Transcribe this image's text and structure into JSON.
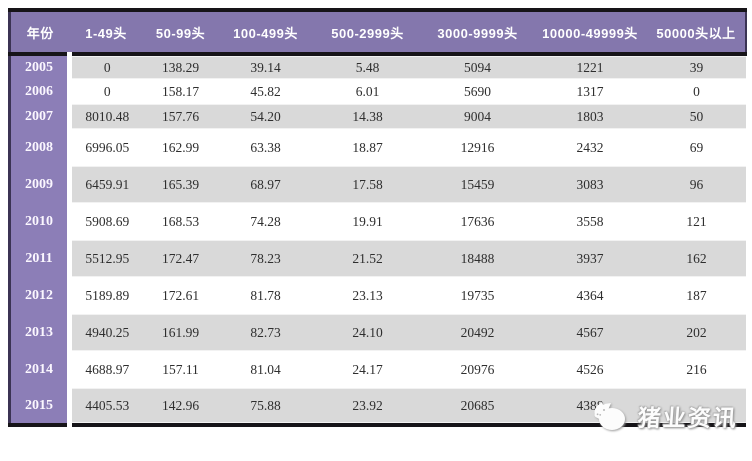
{
  "table": {
    "columns": [
      "年份",
      "1-49头",
      "50-99头",
      "100-499头",
      "500-2999头",
      "3000-9999头",
      "10000-49999头",
      "50000头以上"
    ],
    "rows": [
      {
        "year": "2005",
        "values": [
          "0",
          "138.29",
          "39.14",
          "5.48",
          "5094",
          "1221",
          "39"
        ]
      },
      {
        "year": "2006",
        "values": [
          "0",
          "158.17",
          "45.82",
          "6.01",
          "5690",
          "1317",
          "0"
        ]
      },
      {
        "year": "2007",
        "values": [
          "8010.48",
          "157.76",
          "54.20",
          "14.38",
          "9004",
          "1803",
          "50"
        ]
      },
      {
        "year": "2008",
        "values": [
          "6996.05",
          "162.99",
          "63.38",
          "18.87",
          "12916",
          "2432",
          "69"
        ]
      },
      {
        "year": "2009",
        "values": [
          "6459.91",
          "165.39",
          "68.97",
          "17.58",
          "15459",
          "3083",
          "96"
        ]
      },
      {
        "year": "2010",
        "values": [
          "5908.69",
          "168.53",
          "74.28",
          "19.91",
          "17636",
          "3558",
          "121"
        ]
      },
      {
        "year": "2011",
        "values": [
          "5512.95",
          "172.47",
          "78.23",
          "21.52",
          "18488",
          "3937",
          "162"
        ]
      },
      {
        "year": "2012",
        "values": [
          "5189.89",
          "172.61",
          "81.78",
          "23.13",
          "19735",
          "4364",
          "187"
        ]
      },
      {
        "year": "2013",
        "values": [
          "4940.25",
          "161.99",
          "82.73",
          "24.10",
          "20492",
          "4567",
          "202"
        ]
      },
      {
        "year": "2014",
        "values": [
          "4688.97",
          "157.11",
          "81.04",
          "24.17",
          "20976",
          "4526",
          "216"
        ]
      },
      {
        "year": "2015",
        "values": [
          "4405.53",
          "142.96",
          "75.88",
          "23.92",
          "20685",
          "4388",
          ""
        ]
      }
    ]
  },
  "watermark": {
    "label": "猪业资讯",
    "icon": "pig-logo-icon"
  },
  "colors": {
    "header_bg": "#8477AD",
    "year_col_bg": "#8C7EB7",
    "row_alt_bg": "#D9D9D9",
    "row_bg": "#FFFFFF",
    "border_dark": "#161418",
    "header_text": "#FFFFFF",
    "cell_text": "#2E2E2E"
  }
}
